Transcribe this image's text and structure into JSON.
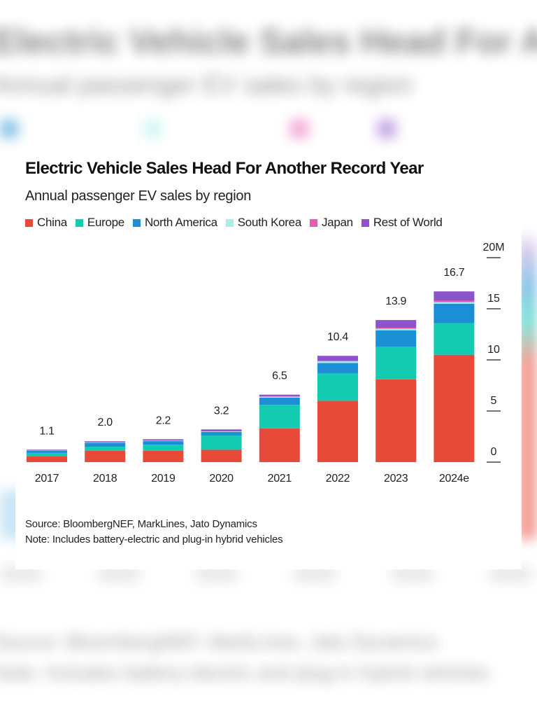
{
  "chart_data": {
    "type": "bar",
    "stacked": true,
    "title": "Electric Vehicle Sales Head For Another Record Year",
    "subtitle": "Annual passenger EV sales by region",
    "categories": [
      "2017",
      "2018",
      "2019",
      "2020",
      "2021",
      "2022",
      "2023",
      "2024e"
    ],
    "totals": [
      "1.1",
      "2.0",
      "2.2",
      "3.2",
      "6.5",
      "10.4",
      "13.9",
      "16.7"
    ],
    "series": [
      {
        "name": "China",
        "color": "#e84a39",
        "values": [
          0.6,
          1.1,
          1.1,
          1.2,
          3.3,
          6.0,
          8.1,
          10.5
        ]
      },
      {
        "name": "Europe",
        "color": "#12cbb0",
        "values": [
          0.3,
          0.4,
          0.6,
          1.4,
          2.3,
          2.7,
          3.2,
          3.1
        ]
      },
      {
        "name": "North America",
        "color": "#1a8fd6",
        "values": [
          0.2,
          0.4,
          0.35,
          0.35,
          0.7,
          1.0,
          1.6,
          1.9
        ]
      },
      {
        "name": "South Korea",
        "color": "#a8efe6",
        "values": [
          0.02,
          0.03,
          0.04,
          0.05,
          0.1,
          0.15,
          0.15,
          0.15
        ]
      },
      {
        "name": "Japan",
        "color": "#e65ab0",
        "values": [
          0.05,
          0.05,
          0.04,
          0.03,
          0.04,
          0.07,
          0.1,
          0.12
        ]
      },
      {
        "name": "Rest of World",
        "color": "#8d54c9",
        "values": [
          0.03,
          0.06,
          0.11,
          0.17,
          0.16,
          0.48,
          0.75,
          0.93
        ]
      }
    ],
    "y_ticks": [
      0,
      5,
      10,
      15,
      20
    ],
    "y_tick_labels": [
      "0",
      "5",
      "10",
      "15",
      "20M"
    ],
    "ylim": [
      0,
      20
    ],
    "y_axis_side": "right",
    "grid": false,
    "legend_placement": "top-left"
  },
  "notes": {
    "source": "Source: BloombergNEF, MarkLines, Jato Dynamics",
    "note": "Note: Includes battery-electric and plug-in hybrid vehicles"
  }
}
